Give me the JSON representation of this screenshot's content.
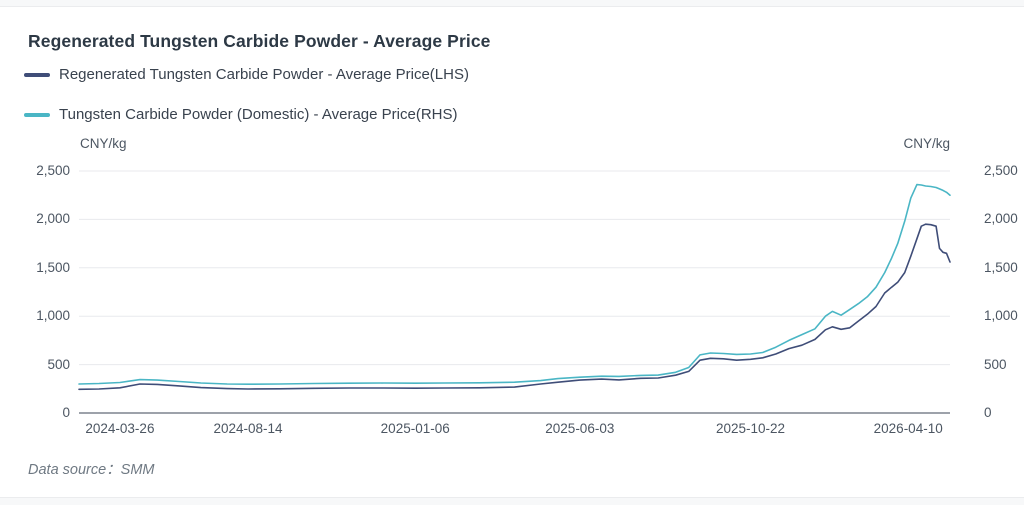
{
  "header": {
    "title": "Regenerated Tungsten Carbide Powder - Average Price"
  },
  "legend": {
    "lhs": {
      "label": "Regenerated Tungsten Carbide Powder - Average Price(LHS)",
      "color": "#3f4d78"
    },
    "rhs": {
      "label": "Tungsten Carbide Powder (Domestic) - Average Price(RHS)",
      "color": "#4ab6c5"
    }
  },
  "footer": {
    "data_source": "Data source：SMM"
  },
  "colors": {
    "lhs_line": "#3f4d78",
    "rhs_line": "#4ab6c5",
    "gridline": "#e8eaed",
    "axis_line": "#3b4654",
    "tick_text": "#4c5662"
  },
  "chart_data": {
    "type": "line",
    "title": "Regenerated Tungsten Carbide Powder - Average Price",
    "y_left_unit": "CNY/kg",
    "y_right_unit": "CNY/kg",
    "ylim": [
      0,
      2500
    ],
    "grid": "horizontal",
    "legend_position": "top-left",
    "y_tick_values": [
      0,
      500,
      1000,
      1500,
      2000,
      2500
    ],
    "y_tick_labels": [
      "0",
      "500",
      "1,000",
      "1,500",
      "2,000",
      "2,500"
    ],
    "x_ticks": [
      {
        "label": "2024-03-26",
        "t": 0.047
      },
      {
        "label": "2024-08-14",
        "t": 0.194
      },
      {
        "label": "2025-01-06",
        "t": 0.386
      },
      {
        "label": "2025-06-03",
        "t": 0.575
      },
      {
        "label": "2025-10-22",
        "t": 0.771
      },
      {
        "label": "2026-04-10",
        "t": 0.952
      }
    ],
    "x": [
      "2024-02-10",
      "2024-03-03",
      "2024-03-26",
      "2024-04-17",
      "2024-05-06",
      "2024-05-30",
      "2024-06-23",
      "2024-07-22",
      "2024-08-14",
      "2024-09-10",
      "2024-10-10",
      "2024-11-10",
      "2024-12-10",
      "2025-01-06",
      "2025-02-02",
      "2025-03-05",
      "2025-04-05",
      "2025-04-29",
      "2025-05-14",
      "2025-06-03",
      "2025-06-21",
      "2025-07-05",
      "2025-07-23",
      "2025-08-07",
      "2025-08-21",
      "2025-09-01",
      "2025-09-10",
      "2025-09-19",
      "2025-09-30",
      "2025-10-10",
      "2025-10-22",
      "2025-11-04",
      "2025-11-18",
      "2025-12-02",
      "2025-12-16",
      "2025-12-30",
      "2026-01-11",
      "2026-01-18",
      "2026-01-28",
      "2026-02-06",
      "2026-02-15",
      "2026-02-25",
      "2026-03-06",
      "2026-03-16",
      "2026-03-23",
      "2026-03-30",
      "2026-04-06",
      "2026-04-13",
      "2026-04-19",
      "2026-04-24",
      "2026-04-29",
      "2026-05-04",
      "2026-05-10",
      "2026-05-14",
      "2026-05-17",
      "2026-05-21",
      "2026-05-25"
    ],
    "x_t": [
      0.0,
      0.023,
      0.047,
      0.07,
      0.09,
      0.115,
      0.14,
      0.17,
      0.194,
      0.23,
      0.27,
      0.31,
      0.35,
      0.386,
      0.42,
      0.46,
      0.5,
      0.53,
      0.55,
      0.575,
      0.6,
      0.62,
      0.645,
      0.665,
      0.685,
      0.7,
      0.713,
      0.725,
      0.74,
      0.755,
      0.771,
      0.785,
      0.8,
      0.815,
      0.83,
      0.845,
      0.857,
      0.865,
      0.875,
      0.885,
      0.895,
      0.905,
      0.915,
      0.925,
      0.933,
      0.94,
      0.948,
      0.955,
      0.962,
      0.967,
      0.972,
      0.978,
      0.984,
      0.988,
      0.992,
      0.996,
      1.0
    ],
    "series": [
      {
        "name": "Regenerated Tungsten Carbide Powder - Average Price(LHS)",
        "axis": "left",
        "color": "#3f4d78",
        "values": [
          245,
          248,
          260,
          300,
          295,
          280,
          262,
          252,
          248,
          250,
          255,
          258,
          258,
          256,
          258,
          260,
          268,
          300,
          318,
          340,
          350,
          342,
          358,
          362,
          390,
          430,
          545,
          565,
          560,
          545,
          555,
          570,
          610,
          665,
          700,
          760,
          860,
          890,
          865,
          880,
          950,
          1020,
          1100,
          1240,
          1300,
          1350,
          1450,
          1620,
          1800,
          1930,
          1950,
          1945,
          1930,
          1700,
          1660,
          1650,
          1560
        ]
      },
      {
        "name": "Tungsten Carbide Powder (Domestic) - Average Price(RHS)",
        "axis": "right",
        "color": "#4ab6c5",
        "values": [
          300,
          305,
          315,
          345,
          340,
          325,
          310,
          300,
          298,
          300,
          305,
          308,
          310,
          308,
          310,
          312,
          318,
          335,
          355,
          370,
          380,
          378,
          388,
          392,
          420,
          470,
          600,
          620,
          615,
          605,
          610,
          625,
          680,
          750,
          810,
          870,
          1000,
          1050,
          1010,
          1070,
          1130,
          1200,
          1300,
          1450,
          1600,
          1750,
          1980,
          2220,
          2360,
          2355,
          2345,
          2340,
          2330,
          2315,
          2300,
          2280,
          2250
        ]
      }
    ]
  }
}
